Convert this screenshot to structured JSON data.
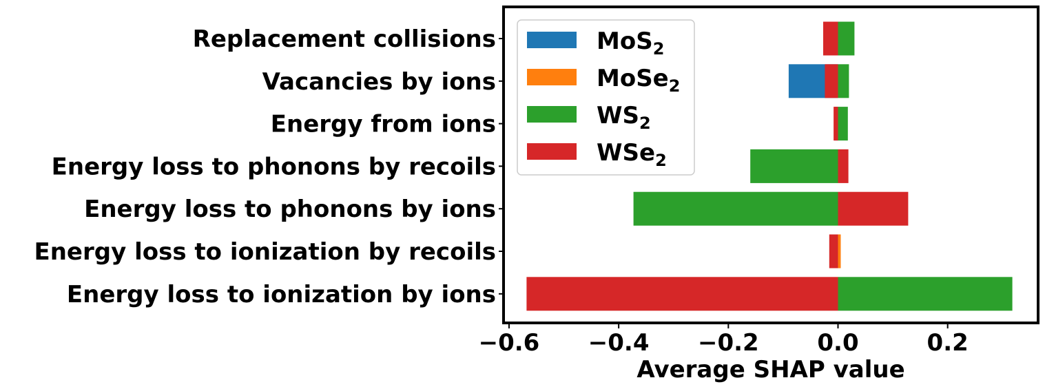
{
  "chart_data": {
    "type": "bar",
    "orientation": "horizontal",
    "stacked": "diverging",
    "title": "",
    "xlabel": "Average SHAP value",
    "ylabel": "",
    "categories": [
      "Replacement collisions",
      "Vacancies by ions",
      "Energy from ions",
      "Energy loss to phonons by recoils",
      "Energy loss to phonons by ions",
      "Energy loss to ionization by recoils",
      "Energy loss to ionization by ions"
    ],
    "series": [
      {
        "name": "MoS",
        "subscript": "2",
        "color": "#1f77b4",
        "values": [
          0.0,
          -0.09,
          -0.006,
          0.0,
          0.0,
          0.0,
          0.0
        ]
      },
      {
        "name": "MoSe",
        "subscript": "2",
        "color": "#ff7f0e",
        "values": [
          0.0,
          0.0,
          0.0,
          0.0,
          0.0,
          0.005,
          0.0
        ]
      },
      {
        "name": "WS",
        "subscript": "2",
        "color": "#2ca02c",
        "values": [
          0.03,
          0.02,
          0.018,
          -0.16,
          -0.373,
          0.0,
          0.318
        ]
      },
      {
        "name": "WSe",
        "subscript": "2",
        "color": "#d62728",
        "values": [
          -0.027,
          -0.024,
          -0.008,
          0.019,
          0.128,
          -0.016,
          -0.568
        ]
      }
    ],
    "xlim": [
      -0.61,
      0.365
    ],
    "xticks": [
      -0.6,
      -0.4,
      -0.2,
      0.0,
      0.2
    ],
    "xtick_labels": [
      "−0.6",
      "−0.4",
      "−0.2",
      "0.0",
      "0.2"
    ],
    "grid": false,
    "legend_position": "upper-left"
  }
}
